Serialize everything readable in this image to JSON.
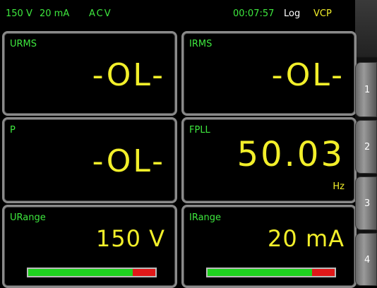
{
  "status_bar": {
    "voltage_range": "150 V",
    "current_range": "20 mA",
    "mode": "ACV",
    "time": "00:07:57",
    "log": "Log",
    "interface": "VCP"
  },
  "tiles": [
    {
      "label": "URMS",
      "value": "-OL-"
    },
    {
      "label": "IRMS",
      "value": "-OL-"
    },
    {
      "label": "P",
      "value": "-OL-"
    },
    {
      "label": "FPLL",
      "value": "50.03",
      "unit": "Hz"
    },
    {
      "label": "URange",
      "value": "150 V"
    },
    {
      "label": "IRange",
      "value": "20 mA"
    }
  ],
  "side_buttons": [
    "1",
    "2",
    "3",
    "4"
  ]
}
